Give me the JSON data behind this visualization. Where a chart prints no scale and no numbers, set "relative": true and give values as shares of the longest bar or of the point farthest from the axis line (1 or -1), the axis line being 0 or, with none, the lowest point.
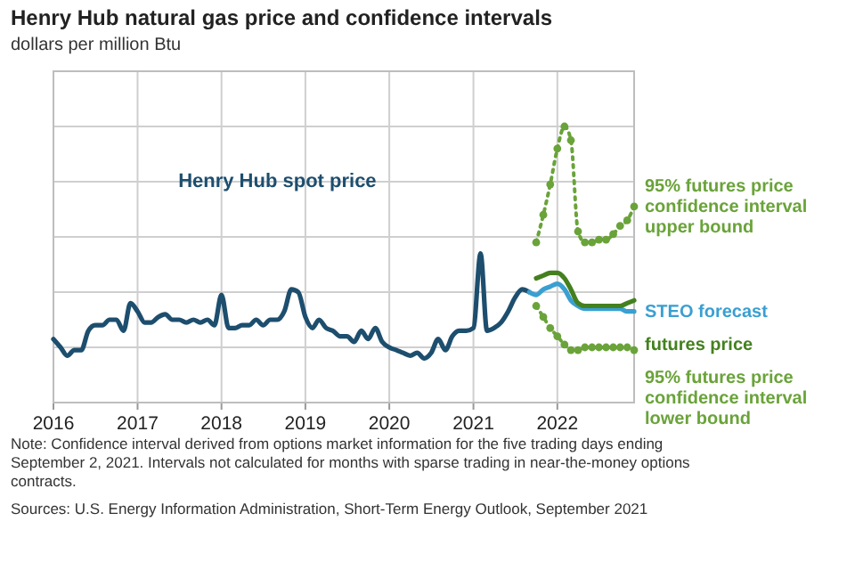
{
  "chart_data": {
    "type": "line",
    "title": "Henry Hub natural gas price and confidence intervals",
    "subtitle": "dollars per million Btu",
    "relative": true,
    "grid": true,
    "xlim": [
      "2016-01",
      "2022-12"
    ],
    "xticks": [
      "2016",
      "2017",
      "2018",
      "2019",
      "2020",
      "2021",
      "2022"
    ],
    "series": [
      {
        "name": "Henry Hub spot price",
        "color": "#1d4e6e",
        "line_style": "solid",
        "marker": "none",
        "x": [
          "2016-01",
          "2016-02",
          "2016-03",
          "2016-04",
          "2016-05",
          "2016-06",
          "2016-07",
          "2016-08",
          "2016-09",
          "2016-10",
          "2016-11",
          "2016-12",
          "2017-01",
          "2017-02",
          "2017-03",
          "2017-04",
          "2017-05",
          "2017-06",
          "2017-07",
          "2017-08",
          "2017-09",
          "2017-10",
          "2017-11",
          "2017-12",
          "2018-01",
          "2018-02",
          "2018-03",
          "2018-04",
          "2018-05",
          "2018-06",
          "2018-07",
          "2018-08",
          "2018-09",
          "2018-10",
          "2018-11",
          "2018-12",
          "2019-01",
          "2019-02",
          "2019-03",
          "2019-04",
          "2019-05",
          "2019-06",
          "2019-07",
          "2019-08",
          "2019-09",
          "2019-10",
          "2019-11",
          "2019-12",
          "2020-01",
          "2020-02",
          "2020-03",
          "2020-04",
          "2020-05",
          "2020-06",
          "2020-07",
          "2020-08",
          "2020-09",
          "2020-10",
          "2020-11",
          "2020-12",
          "2021-01",
          "2021-02",
          "2021-03",
          "2021-04",
          "2021-05",
          "2021-06",
          "2021-07",
          "2021-08",
          "2021-09"
        ],
        "values": [
          0.23,
          0.2,
          0.17,
          0.19,
          0.19,
          0.26,
          0.28,
          0.28,
          0.3,
          0.3,
          0.26,
          0.36,
          0.33,
          0.29,
          0.29,
          0.31,
          0.32,
          0.3,
          0.3,
          0.29,
          0.3,
          0.29,
          0.3,
          0.28,
          0.39,
          0.27,
          0.27,
          0.28,
          0.28,
          0.3,
          0.28,
          0.3,
          0.3,
          0.33,
          0.41,
          0.4,
          0.31,
          0.27,
          0.3,
          0.27,
          0.26,
          0.24,
          0.24,
          0.22,
          0.26,
          0.23,
          0.27,
          0.22,
          0.2,
          0.19,
          0.18,
          0.17,
          0.18,
          0.16,
          0.18,
          0.23,
          0.19,
          0.24,
          0.26,
          0.26,
          0.27,
          0.54,
          0.26,
          0.27,
          0.29,
          0.33,
          0.38,
          0.41,
          0.4
        ]
      },
      {
        "name": "95% futures price confidence interval upper bound",
        "color": "#6aa33a",
        "line_style": "dotted",
        "marker": "circle",
        "x": [
          "2021-10",
          "2021-11",
          "2021-12",
          "2022-01",
          "2022-02",
          "2022-03",
          "2022-04",
          "2022-05",
          "2022-06",
          "2022-07",
          "2022-08",
          "2022-09",
          "2022-10",
          "2022-11",
          "2022-12"
        ],
        "values": [
          0.58,
          0.68,
          0.79,
          0.92,
          1,
          0.95,
          0.62,
          0.58,
          0.58,
          0.59,
          0.59,
          0.61,
          0.64,
          0.66,
          0.71
        ]
      },
      {
        "name": "STEO forecast",
        "color": "#3a9fd1",
        "line_style": "solid",
        "marker": "none",
        "x": [
          "2021-09",
          "2021-10",
          "2021-11",
          "2021-12",
          "2022-01",
          "2022-02",
          "2022-03",
          "2022-04",
          "2022-05",
          "2022-06",
          "2022-07",
          "2022-08",
          "2022-09",
          "2022-10",
          "2022-11",
          "2022-12"
        ],
        "values": [
          0.4,
          0.39,
          0.41,
          0.42,
          0.43,
          0.41,
          0.37,
          0.35,
          0.34,
          0.34,
          0.34,
          0.34,
          0.34,
          0.34,
          0.33,
          0.33
        ]
      },
      {
        "name": "futures price",
        "color": "#44801f",
        "line_style": "solid",
        "marker": "none",
        "x": [
          "2021-10",
          "2021-11",
          "2021-12",
          "2022-01",
          "2022-02",
          "2022-03",
          "2022-04",
          "2022-05",
          "2022-06",
          "2022-07",
          "2022-08",
          "2022-09",
          "2022-10",
          "2022-11",
          "2022-12"
        ],
        "values": [
          0.45,
          0.46,
          0.47,
          0.47,
          0.45,
          0.41,
          0.36,
          0.35,
          0.35,
          0.35,
          0.35,
          0.35,
          0.35,
          0.36,
          0.37
        ]
      },
      {
        "name": "95% futures price confidence interval lower bound",
        "color": "#6aa33a",
        "line_style": "dotted",
        "marker": "circle",
        "x": [
          "2021-10",
          "2021-11",
          "2021-12",
          "2022-01",
          "2022-02",
          "2022-03",
          "2022-04",
          "2022-05",
          "2022-06",
          "2022-07",
          "2022-08",
          "2022-09",
          "2022-10",
          "2022-11",
          "2022-12"
        ],
        "values": [
          0.35,
          0.31,
          0.27,
          0.24,
          0.21,
          0.19,
          0.19,
          0.2,
          0.2,
          0.2,
          0.2,
          0.2,
          0.2,
          0.2,
          0.19
        ]
      }
    ],
    "annotations": [
      "Note: Confidence interval derived from options market information for the five trading days ending September 2, 2021. Intervals not calculated for months with sparse trading in near-the-money options contracts.",
      "Sources: U.S. Energy Information Administration, Short-Term Energy Outlook, September 2021"
    ]
  }
}
